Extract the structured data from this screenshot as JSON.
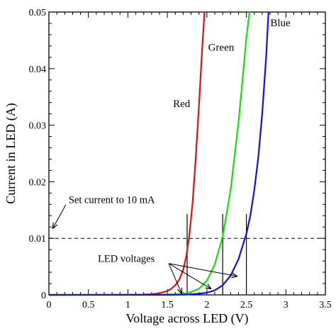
{
  "chart_data": {
    "type": "line",
    "xlabel": "Voltage across LED (V)",
    "ylabel": "Current in LED (A)",
    "xlim": [
      0,
      3.5
    ],
    "ylim": [
      0,
      0.05
    ],
    "xticks": [
      "0",
      "0.5",
      "1",
      "1.5",
      "2",
      "2.5",
      "3",
      "3.5"
    ],
    "yticks": [
      "0",
      "0.01",
      "0.02",
      "0.03",
      "0.04",
      "0.05"
    ],
    "grid": false,
    "series": [
      {
        "name": "Red",
        "color": "#e01010",
        "x": [
          0,
          1.0,
          1.2,
          1.3,
          1.4,
          1.5,
          1.55,
          1.6,
          1.65,
          1.7,
          1.74,
          1.78,
          1.82,
          1.86,
          1.9,
          1.94,
          1.97
        ],
        "y": [
          0,
          2e-05,
          6e-05,
          0.00013,
          0.0003,
          0.0007,
          0.0011,
          0.0017,
          0.0027,
          0.0044,
          0.0069,
          0.0108,
          0.0165,
          0.0245,
          0.0335,
          0.0435,
          0.05
        ]
      },
      {
        "name": "Green",
        "color": "#10e010",
        "x": [
          0,
          1.3,
          1.5,
          1.6,
          1.7,
          1.8,
          1.9,
          2.0,
          2.1,
          2.2,
          2.3,
          2.4,
          2.45,
          2.5,
          2.54
        ],
        "y": [
          0,
          2e-05,
          6e-05,
          0.0001,
          0.0002,
          0.0005,
          0.0011,
          0.0025,
          0.0054,
          0.0103,
          0.0185,
          0.0305,
          0.0378,
          0.0455,
          0.05
        ]
      },
      {
        "name": "Blue",
        "color": "#1010e0",
        "x": [
          0,
          1.5,
          1.7,
          1.8,
          1.9,
          2.0,
          2.1,
          2.2,
          2.3,
          2.4,
          2.5,
          2.55,
          2.6,
          2.65,
          2.7,
          2.75,
          2.78
        ],
        "y": [
          0,
          2e-05,
          5e-05,
          0.0001,
          0.0002,
          0.0004,
          0.0008,
          0.0017,
          0.0034,
          0.0063,
          0.0108,
          0.014,
          0.0185,
          0.0242,
          0.032,
          0.042,
          0.05
        ]
      }
    ],
    "reference_line": {
      "y": 0.01,
      "style": "dashed"
    },
    "marker_lines": [
      {
        "x": 1.75,
        "y_top": 0.0143
      },
      {
        "x": 2.2,
        "y_top": 0.0143
      },
      {
        "x": 2.5,
        "y_top": 0.0143
      }
    ],
    "annotations": [
      {
        "text": "Set current to 10 mA",
        "x": 0.25,
        "y": 0.0162,
        "arrow_to": [
          0.05,
          0.0118
        ]
      },
      {
        "text": "LED voltages",
        "x": 0.62,
        "y": 0.0058,
        "arrow_to": [
          [
            1.68,
            0.0003
          ],
          [
            2.05,
            0.0011
          ],
          [
            2.38,
            0.0033
          ]
        ]
      }
    ],
    "series_labels": [
      {
        "text": "Red",
        "x": 1.68,
        "y": 0.0332
      },
      {
        "text": "Green",
        "x": 2.18,
        "y": 0.0432
      },
      {
        "text": "Blue",
        "x": 2.93,
        "y": 0.0475
      }
    ]
  }
}
